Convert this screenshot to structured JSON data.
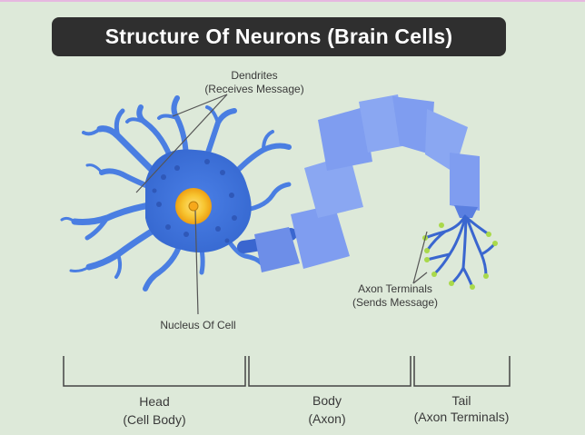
{
  "title": "Structure Of Neurons (Brain Cells)",
  "labels": {
    "dendrites": "Dendrites",
    "dendrites_sub": "(Receives Message)",
    "nucleus": "Nucleus Of Cell",
    "axon_terminals": "Axon Terminals",
    "axon_terminals_sub": "(Sends Message)"
  },
  "sections": [
    {
      "name": "Head",
      "sub": "(Cell Body)"
    },
    {
      "name": "Body",
      "sub": "(Axon)"
    },
    {
      "name": "Tail",
      "sub": "(Axon Terminals)"
    }
  ],
  "colors": {
    "title_bg": "#2f2f2f",
    "cell": "#3f6fd8",
    "axon": "#7f9df0",
    "nucleus": "#f4b400",
    "terminal_tip": "#a9d94a",
    "background": "#dde9d9"
  }
}
